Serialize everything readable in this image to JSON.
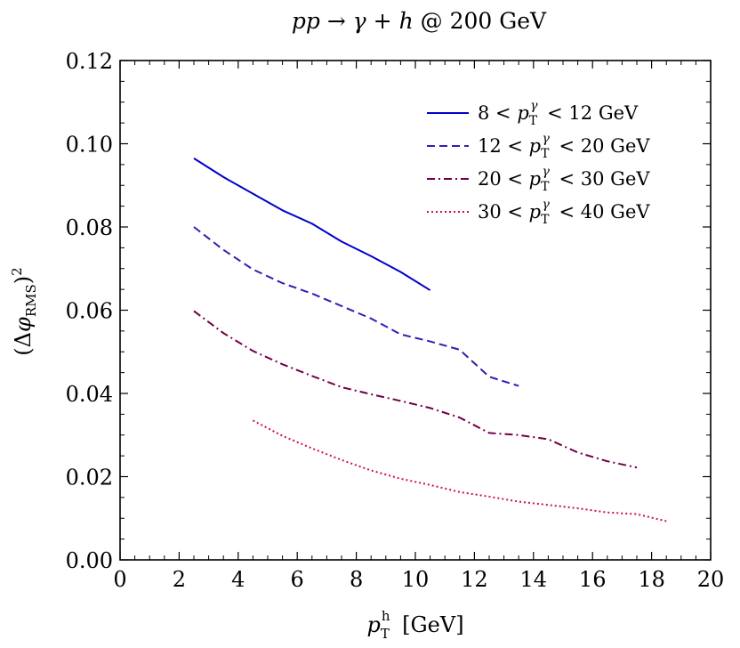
{
  "chart_data": {
    "type": "line",
    "title": "pp → γ + h @ 200 GeV",
    "xlabel": "p_T^h [GeV]",
    "ylabel": "(Δφ_RMS)^2",
    "xlim": [
      0,
      20
    ],
    "ylim": [
      0,
      0.12
    ],
    "xticks": [
      0,
      2,
      4,
      6,
      8,
      10,
      12,
      14,
      16,
      18,
      20
    ],
    "yticks": [
      0.0,
      0.02,
      0.04,
      0.06,
      0.08,
      0.1,
      0.12
    ],
    "xtick_labels": [
      "0",
      "2",
      "4",
      "6",
      "8",
      "10",
      "12",
      "14",
      "16",
      "18",
      "20"
    ],
    "ytick_labels": [
      "0.00",
      "0.02",
      "0.04",
      "0.06",
      "0.08",
      "0.10",
      "0.12"
    ],
    "grid": false,
    "legend_position": "top-right",
    "series": [
      {
        "name": "8 < p_T^γ < 12 GeV",
        "style": "solid",
        "color": "#0000cc",
        "x": [
          2.5,
          3.5,
          4.5,
          5.5,
          6.5,
          7.5,
          8.5,
          9.5,
          10.5
        ],
        "y": [
          0.0965,
          0.092,
          0.088,
          0.084,
          0.0808,
          0.0765,
          0.073,
          0.0692,
          0.0648
        ]
      },
      {
        "name": "12 < p_T^γ < 20 GeV",
        "style": "dashed",
        "color": "#3a1ab0",
        "x": [
          2.5,
          3.5,
          4.5,
          5.5,
          6.5,
          7.5,
          8.5,
          9.5,
          10.5,
          11.5,
          12.5,
          13.5
        ],
        "y": [
          0.08,
          0.0745,
          0.0698,
          0.0665,
          0.064,
          0.061,
          0.058,
          0.0542,
          0.0525,
          0.0505,
          0.044,
          0.0418
        ]
      },
      {
        "name": "20 < p_T^γ < 30 GeV",
        "style": "dashdot",
        "color": "#700045",
        "x": [
          2.5,
          3.5,
          4.5,
          5.5,
          6.5,
          7.5,
          8.5,
          9.5,
          10.5,
          11.5,
          12.5,
          13.5,
          14.5,
          15.5,
          16.5,
          17.5
        ],
        "y": [
          0.0598,
          0.0545,
          0.0502,
          0.047,
          0.0442,
          0.0415,
          0.0398,
          0.0382,
          0.0365,
          0.0342,
          0.0305,
          0.03,
          0.029,
          0.0258,
          0.0237,
          0.0222
        ]
      },
      {
        "name": "30 < p_T^γ < 40 GeV",
        "style": "dotted",
        "color": "#cc1040",
        "x": [
          4.5,
          5.5,
          6.5,
          7.5,
          8.5,
          9.5,
          10.5,
          11.5,
          12.5,
          13.5,
          14.5,
          15.5,
          16.5,
          17.5,
          18.5
        ],
        "y": [
          0.0335,
          0.0298,
          0.0268,
          0.024,
          0.0215,
          0.0195,
          0.018,
          0.0163,
          0.0152,
          0.014,
          0.0132,
          0.0124,
          0.0114,
          0.011,
          0.0093
        ]
      }
    ]
  }
}
